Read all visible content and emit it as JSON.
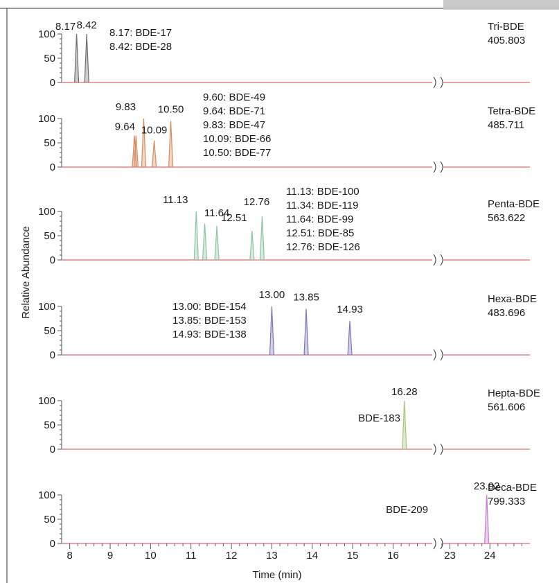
{
  "chart_data": {
    "type": "line",
    "xlabel": "Time (min)",
    "ylabel": "Relative Abundance",
    "x_ticks_left": [
      "8",
      "9",
      "10",
      "11",
      "12",
      "13",
      "14",
      "15",
      "16"
    ],
    "x_ticks_right": [
      "23",
      "24"
    ],
    "xlim_left": [
      7.8,
      16.9
    ],
    "xlim_right": [
      22.8,
      25.0
    ],
    "y_ticks": [
      "0",
      "50",
      "100"
    ],
    "ylim": [
      0,
      100
    ],
    "axis_break": true,
    "panels": [
      {
        "name": "Tri-BDE",
        "mass": "405.803",
        "color": "#6d6d6d",
        "peaks": [
          {
            "rt": 8.17,
            "height": 100
          },
          {
            "rt": 8.42,
            "height": 100
          }
        ],
        "peak_labels": [
          "8.17",
          "8.42"
        ],
        "assignments": [
          "8.17: BDE-17",
          "8.42: BDE-28"
        ]
      },
      {
        "name": "Tetra-BDE",
        "mass": "485.711",
        "color": "#d98a5c",
        "peaks": [
          {
            "rt": 9.6,
            "height": 65
          },
          {
            "rt": 9.64,
            "height": 65
          },
          {
            "rt": 9.83,
            "height": 100
          },
          {
            "rt": 10.09,
            "height": 55
          },
          {
            "rt": 10.5,
            "height": 95
          }
        ],
        "peak_labels": [
          "9.64",
          "9.83",
          "10.09",
          "10.50"
        ],
        "assignments": [
          "9.60:  BDE-49",
          "9.64:  BDE-71",
          "9.83:  BDE-47",
          "10.09: BDE-66",
          "10.50: BDE-77"
        ]
      },
      {
        "name": "Penta-BDE",
        "mass": "563.622",
        "color": "#8cc4a2",
        "peaks": [
          {
            "rt": 11.13,
            "height": 100
          },
          {
            "rt": 11.34,
            "height": 75
          },
          {
            "rt": 11.64,
            "height": 70
          },
          {
            "rt": 12.51,
            "height": 60
          },
          {
            "rt": 12.76,
            "height": 90
          }
        ],
        "peak_labels": [
          "11.13",
          "11.64",
          "12.51",
          "12.76"
        ],
        "assignments": [
          "11.13: BDE-100",
          "11.34: BDE-119",
          "11.64: BDE-99",
          "12.51: BDE-85",
          "12.76: BDE-126"
        ]
      },
      {
        "name": "Hexa-BDE",
        "mass": "483.696",
        "color": "#7a78b8",
        "peaks": [
          {
            "rt": 13.0,
            "height": 100
          },
          {
            "rt": 13.85,
            "height": 95
          },
          {
            "rt": 14.93,
            "height": 70
          }
        ],
        "peak_labels": [
          "13.00",
          "13.85",
          "14.93"
        ],
        "assignments": [
          "13.00: BDE-154",
          "13.85: BDE-153",
          "14.93: BDE-138"
        ]
      },
      {
        "name": "Hepta-BDE",
        "mass": "561.606",
        "color": "#a8c47a",
        "peaks": [
          {
            "rt": 16.28,
            "height": 100
          }
        ],
        "peak_labels": [
          "16.28"
        ],
        "assignments": [
          "BDE-183"
        ]
      },
      {
        "name": "Deca-BDE",
        "mass": "799.333",
        "color": "#c47ac8",
        "peaks": [
          {
            "rt": 23.92,
            "height": 100
          }
        ],
        "peak_labels": [
          "23.92"
        ],
        "assignments": [
          "BDE-209"
        ]
      }
    ]
  }
}
